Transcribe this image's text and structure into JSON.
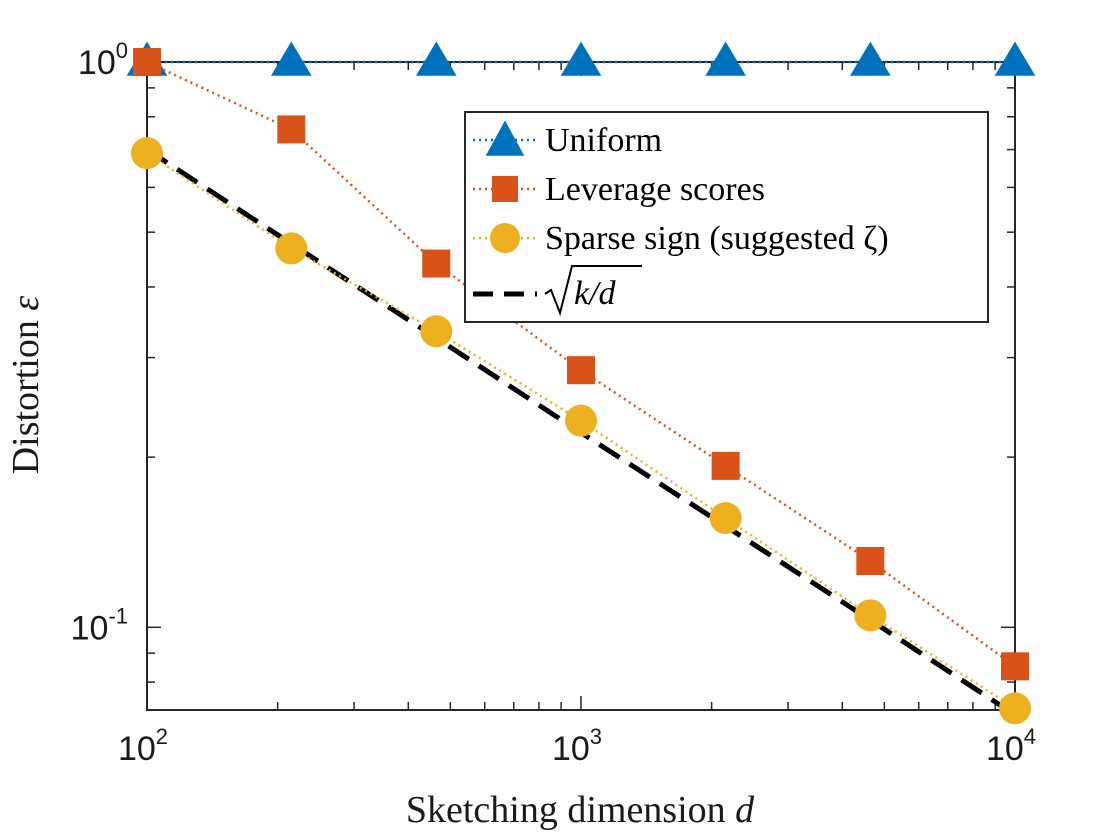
{
  "chart_data": {
    "type": "line",
    "xscale": "log",
    "yscale": "log",
    "xlim": [
      100,
      10000
    ],
    "ylim": [
      0.0714,
      1.0
    ],
    "xlabel": "Sketching dimension ",
    "xlabel_var": "d",
    "ylabel": "Distortion ",
    "ylabel_var": "ε",
    "x": [
      100,
      215,
      464,
      1000,
      2154,
      4642,
      10000
    ],
    "x_ticks": [
      {
        "value": 100,
        "base": "10",
        "exp": "2"
      },
      {
        "value": 1000,
        "base": "10",
        "exp": "3"
      },
      {
        "value": 10000,
        "base": "10",
        "exp": "4"
      }
    ],
    "y_ticks": [
      {
        "value": 1.0,
        "base": "10",
        "exp": "0"
      },
      {
        "value": 0.1,
        "base": "10",
        "exp": "-1"
      }
    ],
    "series": [
      {
        "name": "Uniform",
        "marker": "triangle",
        "line": "dotted",
        "color": "#0072BD",
        "values": [
          1.0,
          1.0,
          1.0,
          1.0,
          1.0,
          1.0,
          1.0
        ]
      },
      {
        "name": "Leverage scores",
        "marker": "square",
        "line": "dotted",
        "color": "#D95319",
        "values": [
          1.0,
          0.76,
          0.44,
          0.285,
          0.193,
          0.131,
          0.0853
        ]
      },
      {
        "name": "Sparse sign (suggested ζ)",
        "marker": "circle",
        "line": "dotted",
        "color": "#EDB120",
        "values": [
          0.69,
          0.468,
          0.334,
          0.232,
          0.156,
          0.105,
          0.0719
        ]
      },
      {
        "name": "√(k/d)",
        "marker": "none",
        "line": "dashed",
        "color": "#000000",
        "values": [
          0.7,
          0.477,
          0.325,
          0.221,
          0.151,
          0.103,
          0.07
        ]
      }
    ],
    "legend": {
      "position": "top-right",
      "entries": [
        "Uniform",
        "Leverage scores",
        "Sparse sign (suggested ζ)",
        "√k/d"
      ],
      "sqrt_arg": "k/d"
    }
  }
}
